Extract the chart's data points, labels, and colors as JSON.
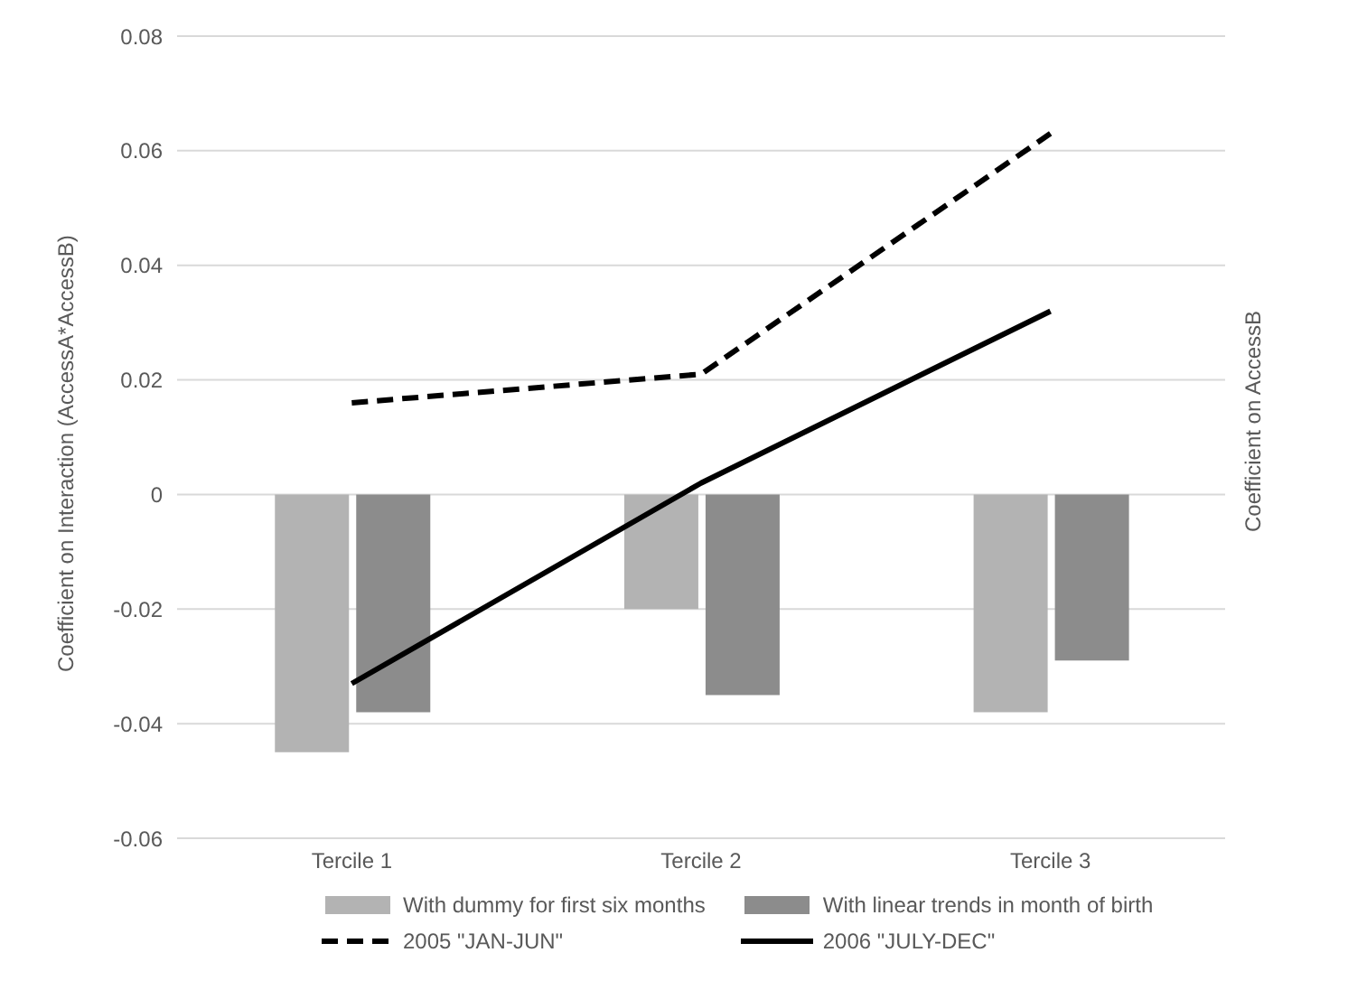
{
  "chart_data": {
    "type": "bar",
    "ylabel": "Coefficient on Interaction (AccessA*AccessB)",
    "y2label": "Coefficient on AccessB",
    "categories": [
      "Tercile 1",
      "Tercile 2",
      "Tercile 3"
    ],
    "series": [
      {
        "name": "With dummy for first six months",
        "color": "#b3b3b3",
        "values": [
          -0.045,
          -0.02,
          -0.038
        ]
      },
      {
        "name": "With linear trends in month of birth",
        "color": "#8c8c8c",
        "values": [
          -0.038,
          -0.035,
          -0.029
        ]
      },
      {
        "name": "2005 \"JAN-JUN\"",
        "type": "line",
        "color": "#000000",
        "line_style": "dashed",
        "values": [
          0.016,
          0.021,
          0.063
        ]
      },
      {
        "name": "2006 \"JULY-DEC\"",
        "type": "line",
        "color": "#000000",
        "line_style": "solid",
        "values": [
          -0.033,
          0.002,
          0.032
        ]
      }
    ],
    "ylim": [
      -0.06,
      0.08
    ],
    "yticks": [
      -0.06,
      -0.04,
      -0.02,
      0,
      0.02,
      0.04,
      0.06,
      0.08
    ],
    "grid": "y",
    "legend": "bottom",
    "marker": "none"
  }
}
